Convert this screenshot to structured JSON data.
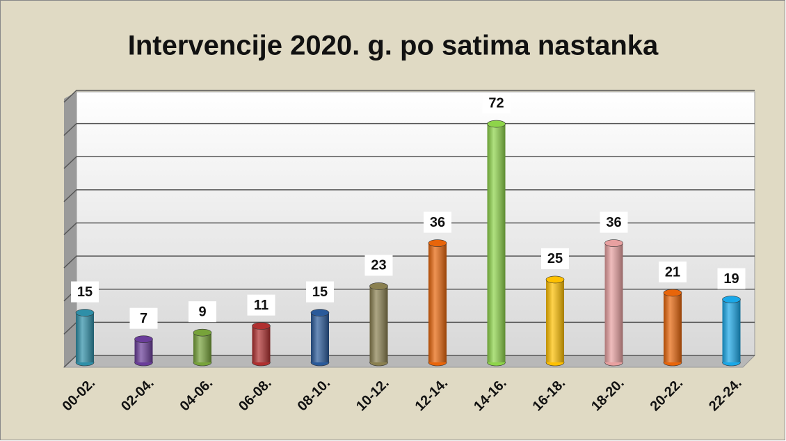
{
  "chart_data": {
    "type": "bar",
    "title": "Intervencije 2020. g. po satima nastanka",
    "categories": [
      "00-02.",
      "02-04.",
      "04-06.",
      "06-08.",
      "08-10.",
      "10-12.",
      "12-14.",
      "14-16.",
      "16-18.",
      "18-20.",
      "20-22.",
      "22-24."
    ],
    "values": [
      15,
      7,
      9,
      11,
      15,
      23,
      36,
      72,
      25,
      36,
      21,
      19
    ],
    "colors": [
      "#2e8fa8",
      "#6a3d9a",
      "#77a33a",
      "#b03030",
      "#2a5a9a",
      "#8a8050",
      "#e8650a",
      "#8ed44a",
      "#ffc000",
      "#e8a0a0",
      "#e8650a",
      "#1aa8e8"
    ],
    "ylim": [
      0,
      80
    ],
    "yticks": [
      0,
      10,
      20,
      30,
      40,
      50,
      60,
      70,
      80
    ],
    "grid": true
  }
}
